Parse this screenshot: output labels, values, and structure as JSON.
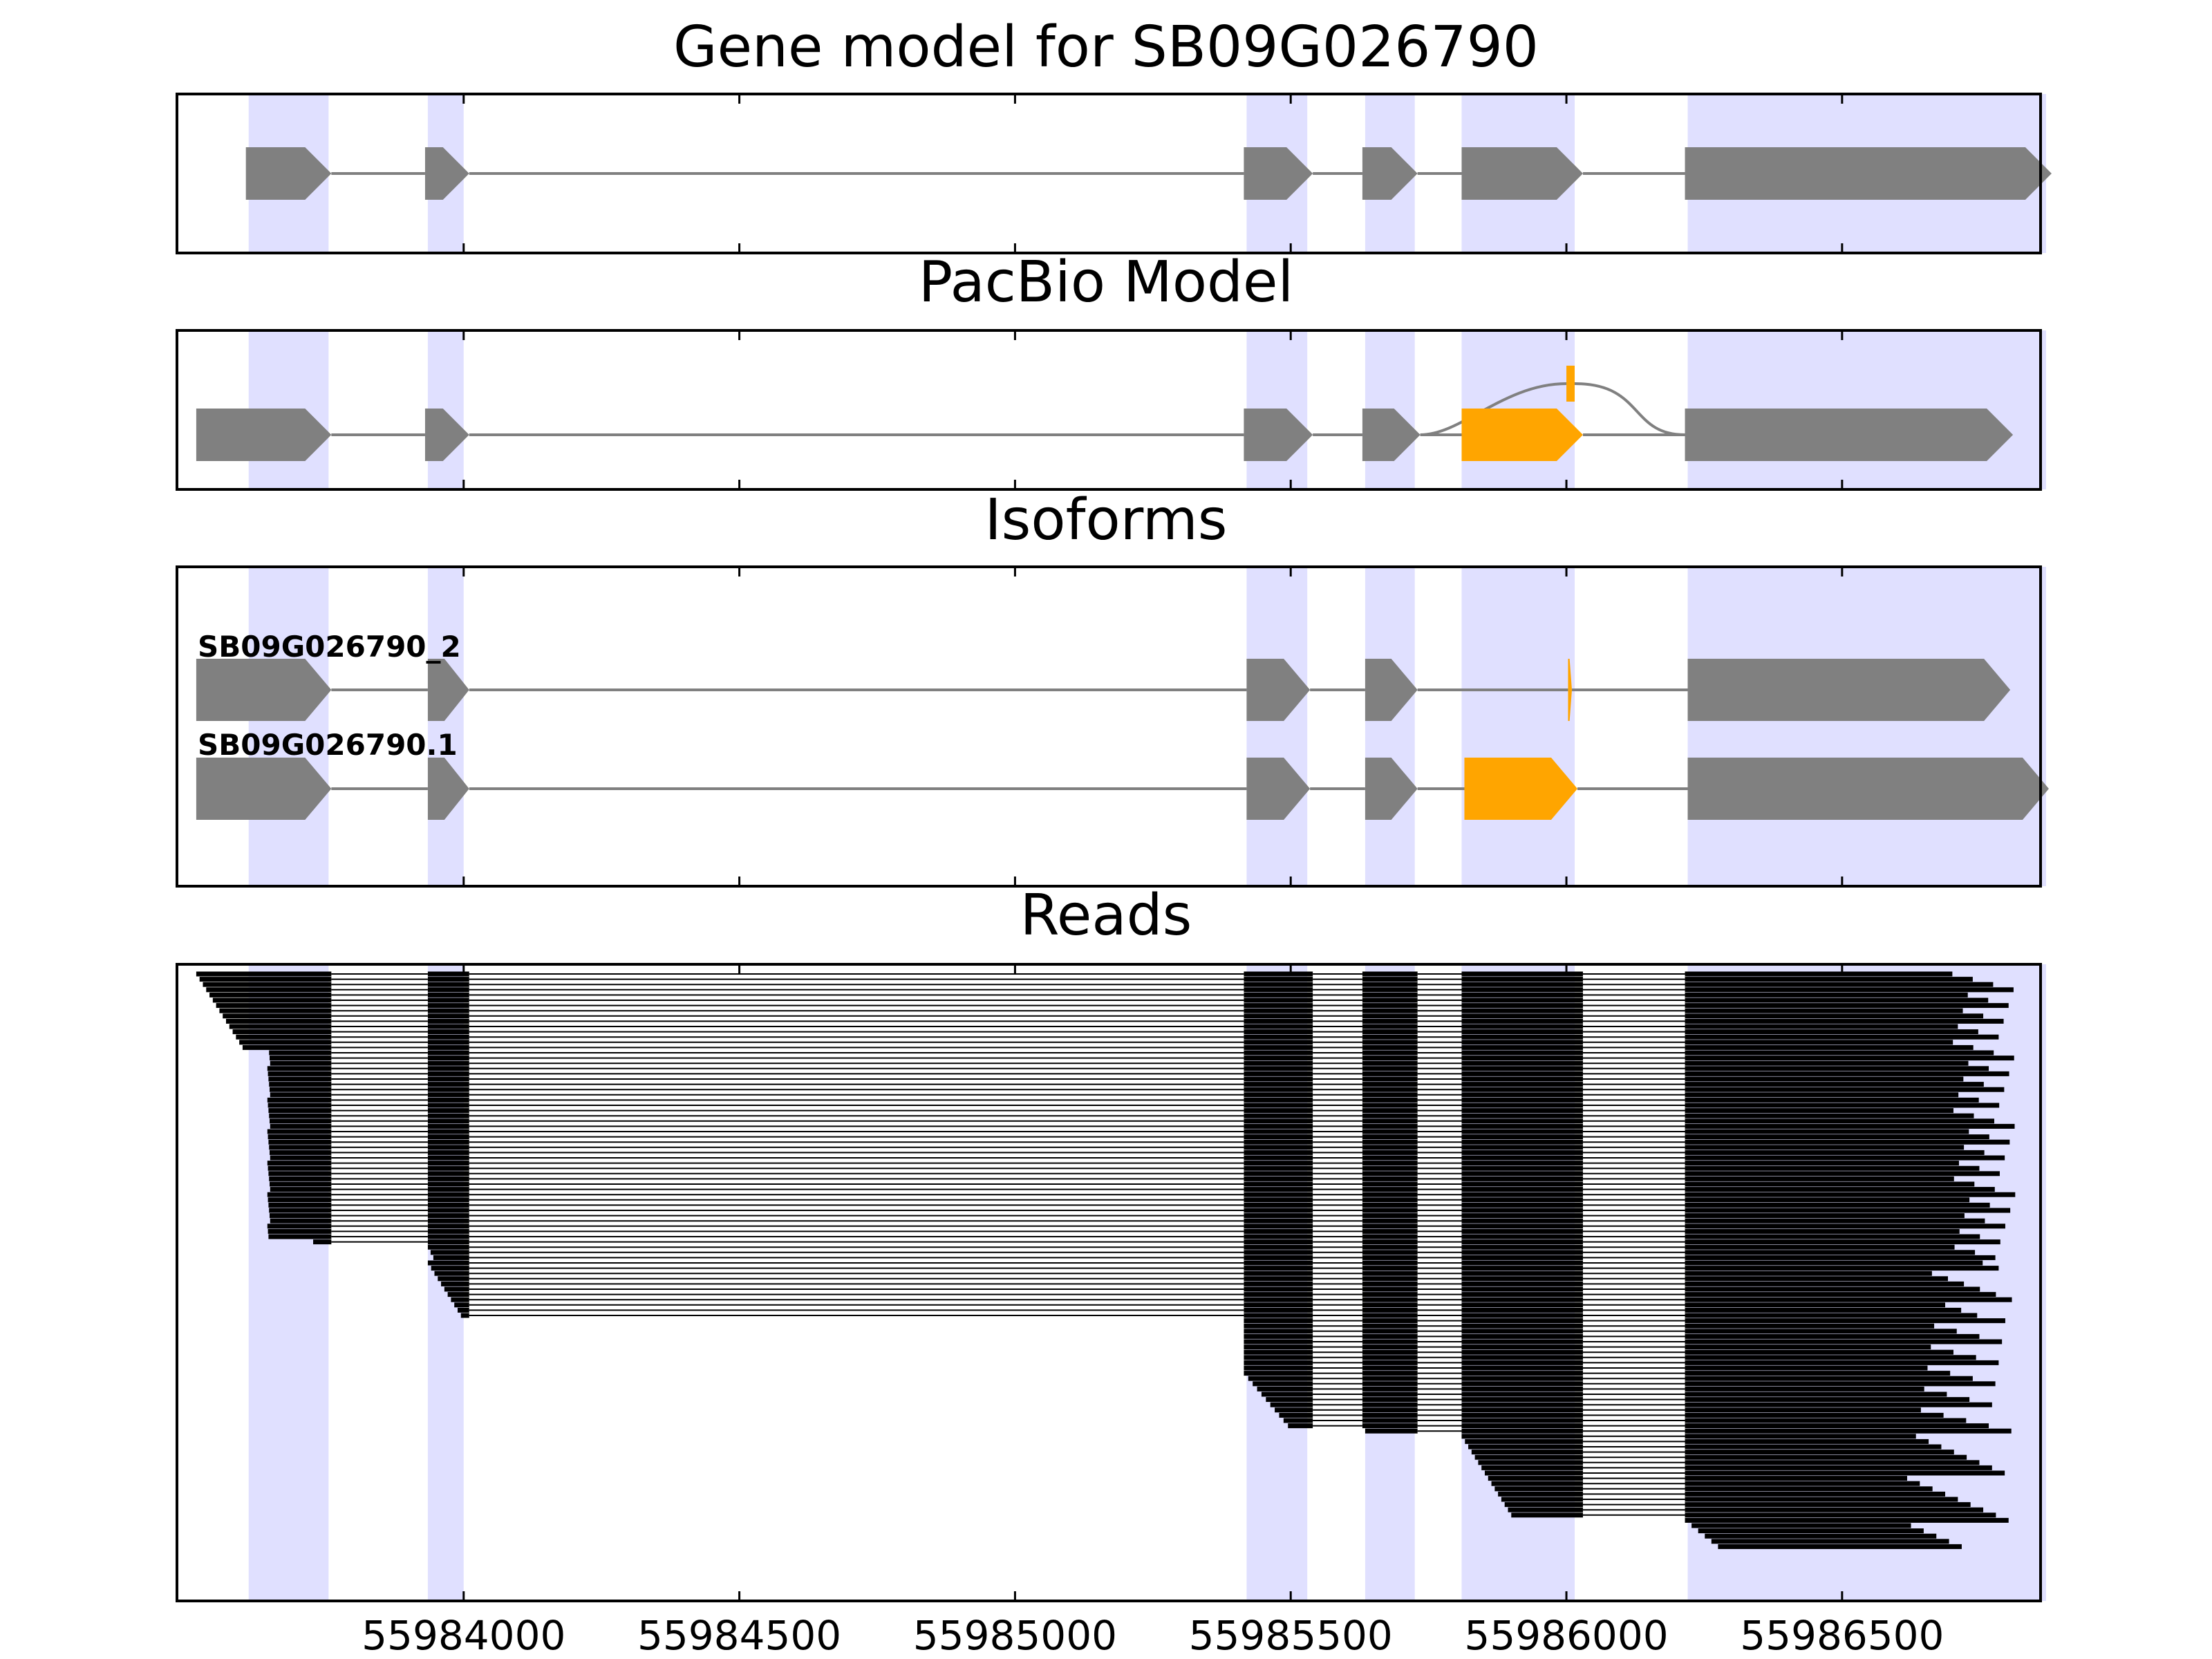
{
  "colors": {
    "exon": "#808080",
    "highlight": "#ffa500",
    "shade": "#e0e0ff",
    "read": "#000000",
    "frame": "#000000"
  },
  "chart_data": {
    "type": "gene-structure",
    "xlim": [
      55983480,
      55986860
    ],
    "xticks": [
      55984000,
      55984500,
      55985000,
      55985500,
      55986000,
      55986500
    ],
    "xtick_labels": [
      "55984000",
      "55984500",
      "55985000",
      "55985500",
      "55986000",
      "55986500"
    ],
    "shaded_regions": [
      [
        55983610,
        55983755
      ],
      [
        55983935,
        55984000
      ],
      [
        55985420,
        55985530
      ],
      [
        55985635,
        55985725
      ],
      [
        55985810,
        55986015
      ],
      [
        55986220,
        55986870
      ]
    ],
    "panels": [
      {
        "id": "gene-model",
        "title": "Gene model for SB09G026790",
        "tracks": [
          {
            "label": "",
            "exons": [
              [
                55983605,
                55983760,
                "grey"
              ],
              [
                55983930,
                55984010,
                "grey"
              ],
              [
                55985415,
                55985540,
                "grey"
              ],
              [
                55985630,
                55985730,
                "grey"
              ],
              [
                55985810,
                55986030,
                "grey"
              ],
              [
                55986215,
                55986880,
                "grey"
              ]
            ],
            "alt": null
          }
        ]
      },
      {
        "id": "pacbio-model",
        "title": "PacBio Model",
        "tracks": [
          {
            "label": "",
            "exons": [
              [
                55983515,
                55983760,
                "grey"
              ],
              [
                55983930,
                55984010,
                "grey"
              ],
              [
                55985415,
                55985540,
                "grey"
              ],
              [
                55985630,
                55985735,
                "grey"
              ],
              [
                55985810,
                55986030,
                "orange"
              ],
              [
                55986215,
                55986810,
                "grey"
              ]
            ],
            "alt": [
              55986000,
              55986015
            ]
          }
        ]
      },
      {
        "id": "isoforms",
        "title": "Isoforms",
        "tracks": [
          {
            "label": "SB09G026790_2",
            "exons": [
              [
                55983515,
                55983760,
                "grey"
              ],
              [
                55983935,
                55984010,
                "grey"
              ],
              [
                55985420,
                55985535,
                "grey"
              ],
              [
                55985635,
                55985730,
                "grey"
              ],
              [
                55986003,
                55986010,
                "orange"
              ],
              [
                55986220,
                55986805,
                "grey"
              ]
            ],
            "alt": null
          },
          {
            "label": "SB09G026790.1",
            "exons": [
              [
                55983515,
                55983760,
                "grey"
              ],
              [
                55983935,
                55984010,
                "grey"
              ],
              [
                55985420,
                55985535,
                "grey"
              ],
              [
                55985635,
                55985730,
                "grey"
              ],
              [
                55985815,
                55986020,
                "orange"
              ],
              [
                55986220,
                55986875,
                "grey"
              ]
            ],
            "alt": null
          }
        ]
      },
      {
        "id": "reads",
        "title": "Reads",
        "read_count": 110
      }
    ]
  }
}
